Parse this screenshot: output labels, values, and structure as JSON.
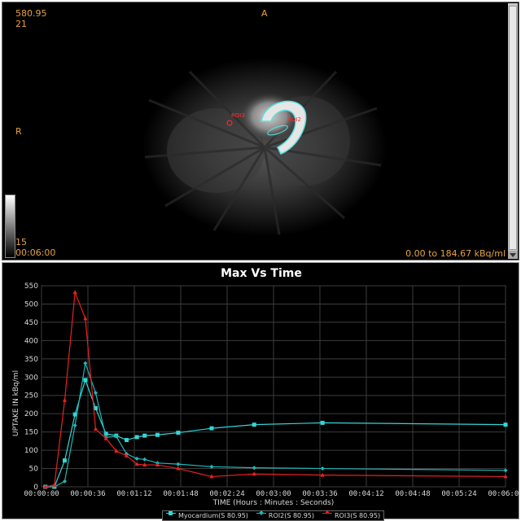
{
  "viewer": {
    "top_left_line1": "580.95",
    "top_left_line2": "21",
    "orientation_top": "A",
    "orientation_left": "R",
    "bottom_left_line1": "15",
    "bottom_left_line2": "00:06:00",
    "range_text": "0.00 to 184.67 kBq/ml",
    "roi_labels": [
      "ROI3",
      "ROI2"
    ]
  },
  "chart_data": {
    "type": "line",
    "title": "Max Vs Time",
    "xlabel": "TIME (Hours : Minutes : Seconds)",
    "ylabel": "UPTAKE IN kBq/ml",
    "ylim": [
      0,
      550
    ],
    "yticks": [
      0,
      50,
      100,
      150,
      200,
      250,
      300,
      350,
      400,
      450,
      500,
      550
    ],
    "xlim": [
      0,
      360
    ],
    "xticks": [
      "00:00:00",
      "00:00:36",
      "00:01:12",
      "00:01:48",
      "00:02:24",
      "00:03:00",
      "00:03:36",
      "00:04:12",
      "00:04:48",
      "00:05:24",
      "00:06:00"
    ],
    "grid": true,
    "legend_position": "bottom",
    "series": [
      {
        "name": "Myocardium(S 80.95)",
        "color": "#33d6d6",
        "marker": "square",
        "x": [
          3,
          10,
          18,
          26,
          34,
          42,
          50,
          58,
          66,
          74,
          80,
          90,
          106,
          132,
          165,
          218,
          360
        ],
        "y": [
          0,
          0,
          72,
          198,
          292,
          215,
          145,
          140,
          128,
          136,
          140,
          142,
          148,
          160,
          170,
          175,
          170
        ]
      },
      {
        "name": "ROI2(S 80.95)",
        "color": "#1fb8b8",
        "marker": "diamond",
        "x": [
          3,
          10,
          18,
          26,
          34,
          42,
          50,
          58,
          66,
          74,
          80,
          90,
          106,
          132,
          165,
          218,
          360
        ],
        "y": [
          0,
          0,
          15,
          168,
          338,
          257,
          135,
          138,
          90,
          77,
          75,
          65,
          62,
          55,
          52,
          50,
          45
        ]
      },
      {
        "name": "ROI3(S 80.95)",
        "color": "#e82020",
        "marker": "triangle",
        "x": [
          3,
          10,
          18,
          26,
          34,
          42,
          50,
          58,
          66,
          74,
          80,
          90,
          106,
          132,
          165,
          218,
          360
        ],
        "y": [
          0,
          5,
          237,
          532,
          460,
          158,
          132,
          98,
          85,
          62,
          60,
          60,
          50,
          28,
          35,
          32,
          28
        ]
      }
    ]
  }
}
